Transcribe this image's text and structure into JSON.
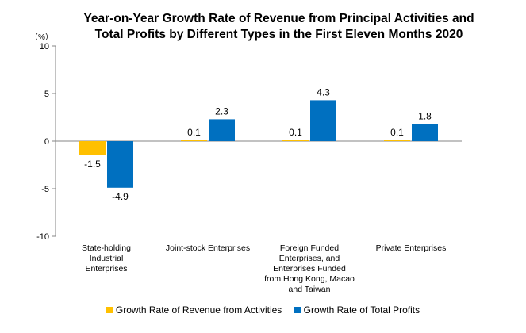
{
  "chart_data": {
    "type": "bar",
    "title": "Year-on-Year Growth Rate of Revenue from Principal Activities  and Total Profits by Different Types in the First Eleven Months 2020",
    "title_lines": [
      "Year-on-Year Growth Rate of Revenue from Principal Activities  and",
      "Total Profits by Different Types in the First Eleven Months 2020"
    ],
    "unit_label": "（%）",
    "categories": [
      "State-holding Industrial Enterprises",
      "Joint-stock Enterprises",
      "Foreign Funded Enterprises, and Enterprises Funded from Hong Kong, Macao and Taiwan",
      "Private Enterprises"
    ],
    "category_lines": [
      [
        "State-holding",
        "Industrial",
        "Enterprises"
      ],
      [
        "Joint-stock Enterprises"
      ],
      [
        "Foreign Funded",
        "Enterprises, and",
        "Enterprises Funded",
        "from Hong Kong, Macao",
        "and Taiwan"
      ],
      [
        "Private Enterprises"
      ]
    ],
    "series": [
      {
        "name": "Growth Rate of Revenue from Activities",
        "color": "#FFC000",
        "values": [
          -1.5,
          0.1,
          0.1,
          0.1
        ]
      },
      {
        "name": "Growth Rate of Total Profits",
        "color": "#0070C0",
        "values": [
          -4.9,
          2.3,
          4.3,
          1.8
        ]
      }
    ],
    "ylim": [
      -10,
      10
    ],
    "yticks": [
      "10",
      "5",
      "0",
      "-5",
      "-10"
    ],
    "xlabel": "",
    "ylabel": "",
    "grid": false,
    "legend_position": "bottom"
  }
}
